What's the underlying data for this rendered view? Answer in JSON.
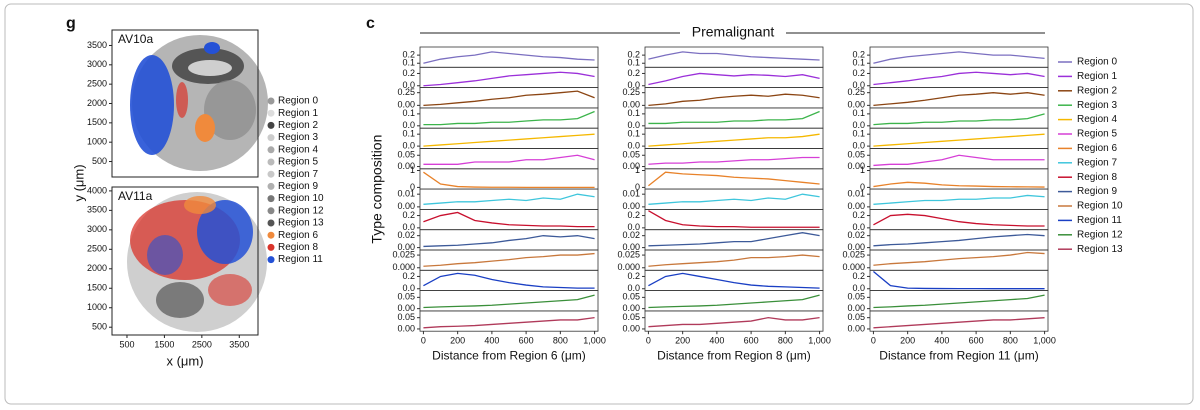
{
  "chart_data": [
    {
      "type": "map",
      "panel_label": "g",
      "y_label": "y (μm)",
      "x_label": "x (μm)",
      "xlim": [
        100,
        4000
      ],
      "xticks": [
        500,
        1500,
        2500,
        3500
      ],
      "maps": [
        {
          "title": "AV10a",
          "ylim": [
            100,
            3900
          ],
          "yticks": [
            500,
            1000,
            1500,
            2000,
            2500,
            3000,
            3500
          ]
        },
        {
          "title": "AV11a",
          "ylim": [
            300,
            4100
          ],
          "yticks": [
            500,
            1000,
            1500,
            2000,
            2500,
            3000,
            3500,
            4000
          ]
        }
      ],
      "legend": [
        {
          "name": "Region 0",
          "color": "#9a9a9a"
        },
        {
          "name": "Region 1",
          "color": "#dddddd"
        },
        {
          "name": "Region 2",
          "color": "#444444"
        },
        {
          "name": "Region 3",
          "color": "#cccccc"
        },
        {
          "name": "Region 4",
          "color": "#aaaaaa"
        },
        {
          "name": "Region 5",
          "color": "#bbbbbb"
        },
        {
          "name": "Region 7",
          "color": "#c8c8c8"
        },
        {
          "name": "Region 9",
          "color": "#b0b0b0"
        },
        {
          "name": "Region 10",
          "color": "#777777"
        },
        {
          "name": "Region 12",
          "color": "#888888"
        },
        {
          "name": "Region 13",
          "color": "#555555"
        },
        {
          "name": "Region 6",
          "color": "#f08a3c"
        },
        {
          "name": "Region 8",
          "color": "#d9342b"
        },
        {
          "name": "Region 11",
          "color": "#2451d6"
        }
      ]
    },
    {
      "type": "line-grid",
      "panel_label": "c",
      "title": "Premalignant",
      "y_label": "Type composition",
      "x": [
        0,
        100,
        200,
        300,
        400,
        500,
        600,
        700,
        800,
        900,
        1000
      ],
      "xlim": [
        -20,
        1020
      ],
      "xticks": [
        0,
        200,
        400,
        600,
        800,
        {
          "value": 1000,
          "label": "1,000"
        }
      ],
      "series": [
        {
          "name": "Region 0",
          "color": "#7b6fc0",
          "ylim": [
            0.05,
            0.3
          ],
          "yticks": [
            0.1,
            0.2
          ]
        },
        {
          "name": "Region 1",
          "color": "#9b30d9",
          "ylim": [
            -0.03,
            0.3
          ],
          "yticks": [
            {
              "value": 0,
              "label": "0.0"
            },
            0.2
          ]
        },
        {
          "name": "Region 2",
          "color": "#8b4513",
          "ylim": [
            -0.05,
            0.35
          ],
          "yticks": [
            {
              "value": 0,
              "label": "0.00"
            },
            0.25
          ]
        },
        {
          "name": "Region 3",
          "color": "#3cb44b",
          "ylim": [
            -0.02,
            0.15
          ],
          "yticks": [
            {
              "value": 0,
              "label": "0.0"
            },
            0.1
          ]
        },
        {
          "name": "Region 4",
          "color": "#f5b800",
          "ylim": [
            -0.02,
            0.15
          ],
          "yticks": [
            {
              "value": 0,
              "label": "0.0"
            },
            0.1
          ]
        },
        {
          "name": "Region 5",
          "color": "#d63fd6",
          "ylim": [
            -0.01,
            0.08
          ],
          "yticks": [
            {
              "value": 0,
              "label": "0.00"
            },
            0.05
          ]
        },
        {
          "name": "Region 6",
          "color": "#e8822a",
          "ylim": [
            -0.1,
            1.1
          ],
          "yticks": [
            0,
            1
          ]
        },
        {
          "name": "Region 7",
          "color": "#3fc6dc",
          "ylim": [
            -0.002,
            0.014
          ],
          "yticks": [
            {
              "value": 0,
              "label": "0.00"
            },
            0.01
          ]
        },
        {
          "name": "Region 8",
          "color": "#c8102e",
          "ylim": [
            -0.03,
            0.3
          ],
          "yticks": [
            {
              "value": 0,
              "label": "0.0"
            },
            0.2
          ]
        },
        {
          "name": "Region 9",
          "color": "#3d5a99",
          "ylim": [
            -0.004,
            0.03
          ],
          "yticks": [
            {
              "value": 0,
              "label": "0.00"
            },
            0.02
          ]
        },
        {
          "name": "Region 10",
          "color": "#c8783c",
          "ylim": [
            -0.005,
            0.035
          ],
          "yticks": [
            {
              "value": 0,
              "label": "0.000"
            },
            0.025
          ]
        },
        {
          "name": "Region 11",
          "color": "#1a3fc4",
          "ylim": [
            -0.03,
            0.3
          ],
          "yticks": [
            {
              "value": 0,
              "label": "0.0"
            },
            0.2
          ]
        },
        {
          "name": "Region 12",
          "color": "#3a8f3a",
          "ylim": [
            -0.01,
            0.08
          ],
          "yticks": [
            {
              "value": 0,
              "label": "0.00"
            },
            0.05
          ]
        },
        {
          "name": "Region 13",
          "color": "#b03a5a",
          "ylim": [
            -0.01,
            0.08
          ],
          "yticks": [
            {
              "value": 0,
              "label": "0.00"
            },
            0.05
          ]
        }
      ],
      "panels": [
        {
          "x_label": "Distance from Region 6 (μm)",
          "values": [
            [
              0.1,
              0.15,
              0.18,
              0.2,
              0.24,
              0.22,
              0.2,
              0.18,
              0.17,
              0.15,
              0.14
            ],
            [
              0.0,
              0.02,
              0.05,
              0.08,
              0.12,
              0.16,
              0.18,
              0.2,
              0.22,
              0.2,
              0.15
            ],
            [
              0.0,
              0.02,
              0.05,
              0.08,
              0.12,
              0.15,
              0.2,
              0.22,
              0.25,
              0.28,
              0.15
            ],
            [
              0.01,
              0.01,
              0.02,
              0.02,
              0.03,
              0.03,
              0.04,
              0.05,
              0.05,
              0.06,
              0.12
            ],
            [
              0.0,
              0.01,
              0.02,
              0.03,
              0.04,
              0.05,
              0.06,
              0.07,
              0.08,
              0.09,
              0.1
            ],
            [
              0.01,
              0.01,
              0.01,
              0.02,
              0.02,
              0.02,
              0.03,
              0.03,
              0.04,
              0.05,
              0.03
            ],
            [
              0.9,
              0.2,
              0.05,
              0.02,
              0.01,
              0.01,
              0.0,
              0.0,
              0.0,
              0.0,
              0.0
            ],
            [
              0.002,
              0.003,
              0.004,
              0.004,
              0.005,
              0.006,
              0.005,
              0.007,
              0.006,
              0.01,
              0.008
            ],
            [
              0.1,
              0.2,
              0.25,
              0.12,
              0.08,
              0.05,
              0.04,
              0.03,
              0.03,
              0.02,
              0.02
            ],
            [
              0.002,
              0.003,
              0.004,
              0.006,
              0.008,
              0.012,
              0.015,
              0.02,
              0.018,
              0.02,
              0.015
            ],
            [
              0.003,
              0.005,
              0.008,
              0.01,
              0.013,
              0.016,
              0.02,
              0.022,
              0.025,
              0.025,
              0.028
            ],
            [
              0.05,
              0.2,
              0.25,
              0.22,
              0.15,
              0.1,
              0.06,
              0.03,
              0.02,
              0.01,
              0.01
            ],
            [
              0.005,
              0.008,
              0.01,
              0.012,
              0.015,
              0.02,
              0.025,
              0.03,
              0.035,
              0.04,
              0.06
            ],
            [
              0.005,
              0.01,
              0.012,
              0.015,
              0.02,
              0.025,
              0.03,
              0.035,
              0.04,
              0.04,
              0.05
            ]
          ]
        },
        {
          "x_label": "Distance from Region 8 (μm)",
          "values": [
            [
              0.15,
              0.2,
              0.24,
              0.22,
              0.22,
              0.2,
              0.18,
              0.17,
              0.16,
              0.15,
              0.14
            ],
            [
              0.02,
              0.08,
              0.15,
              0.2,
              0.18,
              0.16,
              0.18,
              0.17,
              0.15,
              0.18,
              0.12
            ],
            [
              0.0,
              0.03,
              0.08,
              0.1,
              0.15,
              0.18,
              0.2,
              0.18,
              0.22,
              0.2,
              0.15
            ],
            [
              0.02,
              0.02,
              0.03,
              0.03,
              0.03,
              0.04,
              0.04,
              0.05,
              0.05,
              0.06,
              0.12
            ],
            [
              0.0,
              0.01,
              0.02,
              0.03,
              0.04,
              0.05,
              0.06,
              0.07,
              0.07,
              0.08,
              0.1
            ],
            [
              0.01,
              0.015,
              0.015,
              0.02,
              0.02,
              0.025,
              0.03,
              0.03,
              0.035,
              0.04,
              0.04
            ],
            [
              0.1,
              0.9,
              0.8,
              0.75,
              0.7,
              0.6,
              0.55,
              0.5,
              0.4,
              0.3,
              0.2
            ],
            [
              0.002,
              0.003,
              0.004,
              0.004,
              0.005,
              0.006,
              0.005,
              0.007,
              0.006,
              0.01,
              0.008
            ],
            [
              0.28,
              0.12,
              0.05,
              0.03,
              0.02,
              0.02,
              0.01,
              0.01,
              0.01,
              0.01,
              0.01
            ],
            [
              0.003,
              0.004,
              0.005,
              0.006,
              0.008,
              0.01,
              0.01,
              0.015,
              0.02,
              0.025,
              0.02
            ],
            [
              0.003,
              0.006,
              0.008,
              0.01,
              0.012,
              0.015,
              0.02,
              0.02,
              0.022,
              0.025,
              0.022
            ],
            [
              0.05,
              0.2,
              0.25,
              0.2,
              0.15,
              0.1,
              0.06,
              0.04,
              0.03,
              0.02,
              0.01
            ],
            [
              0.005,
              0.008,
              0.01,
              0.012,
              0.015,
              0.02,
              0.025,
              0.03,
              0.035,
              0.04,
              0.06
            ],
            [
              0.01,
              0.015,
              0.02,
              0.02,
              0.025,
              0.03,
              0.035,
              0.05,
              0.04,
              0.04,
              0.05
            ]
          ]
        },
        {
          "x_label": "Distance from Region 11 (μm)",
          "values": [
            [
              0.1,
              0.15,
              0.18,
              0.2,
              0.22,
              0.24,
              0.22,
              0.2,
              0.2,
              0.18,
              0.16
            ],
            [
              0.02,
              0.05,
              0.08,
              0.12,
              0.15,
              0.2,
              0.22,
              0.2,
              0.18,
              0.2,
              0.15
            ],
            [
              0.0,
              0.03,
              0.06,
              0.1,
              0.15,
              0.2,
              0.22,
              0.25,
              0.22,
              0.25,
              0.2
            ],
            [
              0.01,
              0.02,
              0.02,
              0.03,
              0.03,
              0.04,
              0.04,
              0.05,
              0.05,
              0.06,
              0.1
            ],
            [
              0.0,
              0.01,
              0.02,
              0.03,
              0.04,
              0.05,
              0.06,
              0.07,
              0.08,
              0.09,
              0.1
            ],
            [
              0.005,
              0.01,
              0.01,
              0.02,
              0.03,
              0.05,
              0.04,
              0.03,
              0.03,
              0.03,
              0.03
            ],
            [
              0.05,
              0.2,
              0.3,
              0.25,
              0.15,
              0.1,
              0.08,
              0.05,
              0.04,
              0.03,
              0.02
            ],
            [
              0.002,
              0.003,
              0.004,
              0.005,
              0.005,
              0.006,
              0.006,
              0.007,
              0.007,
              0.009,
              0.008
            ],
            [
              0.05,
              0.2,
              0.22,
              0.2,
              0.15,
              0.1,
              0.07,
              0.05,
              0.04,
              0.03,
              0.03
            ],
            [
              0.003,
              0.005,
              0.006,
              0.008,
              0.01,
              0.012,
              0.015,
              0.018,
              0.02,
              0.022,
              0.02
            ],
            [
              0.005,
              0.008,
              0.01,
              0.012,
              0.015,
              0.018,
              0.02,
              0.022,
              0.025,
              0.03,
              0.028
            ],
            [
              0.28,
              0.05,
              0.01,
              0.005,
              0.003,
              0.002,
              0.002,
              0.001,
              0.001,
              0.001,
              0.001
            ],
            [
              0.005,
              0.008,
              0.012,
              0.015,
              0.02,
              0.025,
              0.03,
              0.035,
              0.04,
              0.045,
              0.06
            ],
            [
              0.005,
              0.01,
              0.015,
              0.02,
              0.025,
              0.03,
              0.035,
              0.04,
              0.04,
              0.045,
              0.05
            ]
          ]
        }
      ]
    }
  ]
}
